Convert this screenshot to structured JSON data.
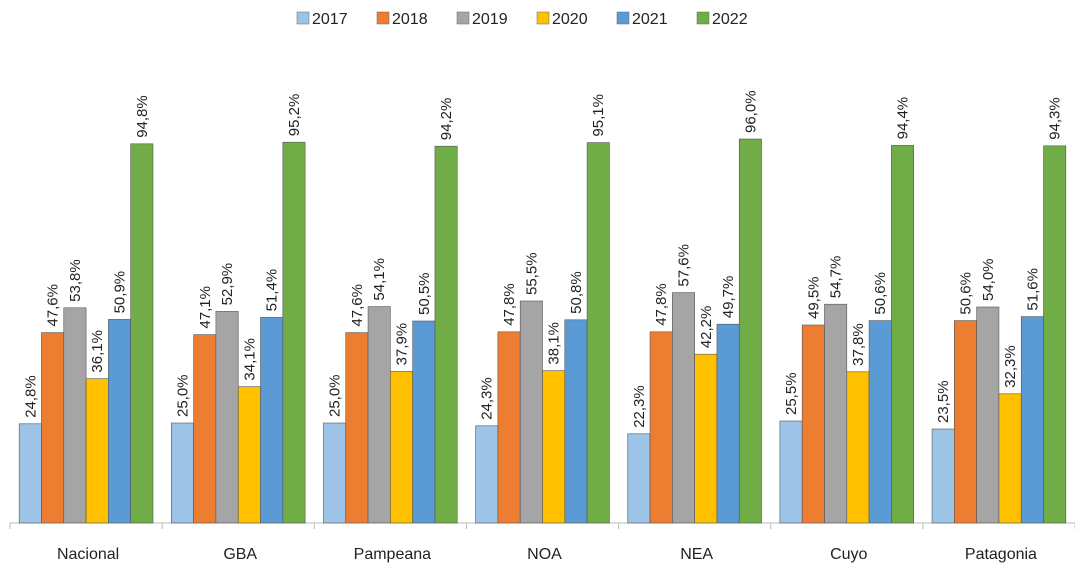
{
  "chart_data": {
    "type": "bar",
    "categories": [
      "Nacional",
      "GBA",
      "Pampeana",
      "NOA",
      "NEA",
      "Cuyo",
      "Patagonia"
    ],
    "series": [
      {
        "name": "2017",
        "color": "#9dc3e6",
        "values": [
          24.8,
          25.0,
          25.0,
          24.3,
          22.3,
          25.5,
          23.5
        ],
        "value_labels": [
          "24,8%",
          "25,0%",
          "25,0%",
          "24,3%",
          "22,3%",
          "25,5%",
          "23,5%"
        ]
      },
      {
        "name": "2018",
        "color": "#ed7d31",
        "values": [
          47.6,
          47.1,
          47.6,
          47.8,
          47.8,
          49.5,
          50.6
        ],
        "value_labels": [
          "47,6%",
          "47,1%",
          "47,6%",
          "47,8%",
          "47,8%",
          "49,5%",
          "50,6%"
        ]
      },
      {
        "name": "2019",
        "color": "#a5a5a5",
        "values": [
          53.8,
          52.9,
          54.1,
          55.5,
          57.6,
          54.7,
          54.0
        ],
        "value_labels": [
          "53,8%",
          "52,9%",
          "54,1%",
          "55,5%",
          "57,6%",
          "54,7%",
          "54,0%"
        ]
      },
      {
        "name": "2020",
        "color": "#ffc000",
        "values": [
          36.1,
          34.1,
          37.9,
          38.1,
          42.2,
          37.8,
          32.3
        ],
        "value_labels": [
          "36,1%",
          "34,1%",
          "37,9%",
          "38,1%",
          "42,2%",
          "37,8%",
          "32,3%"
        ]
      },
      {
        "name": "2021",
        "color": "#5b9bd5",
        "values": [
          50.9,
          51.4,
          50.5,
          50.8,
          49.7,
          50.6,
          51.6
        ],
        "value_labels": [
          "50,9%",
          "51,4%",
          "50,5%",
          "50,8%",
          "49,7%",
          "50,6%",
          "51,6%"
        ]
      },
      {
        "name": "2022",
        "color": "#70ad47",
        "values": [
          94.8,
          95.2,
          94.2,
          95.1,
          96.0,
          94.4,
          94.3
        ],
        "value_labels": [
          "94,8%",
          "95,2%",
          "94,2%",
          "95,1%",
          "96,0%",
          "94,4%",
          "94,3%"
        ]
      }
    ]
  }
}
